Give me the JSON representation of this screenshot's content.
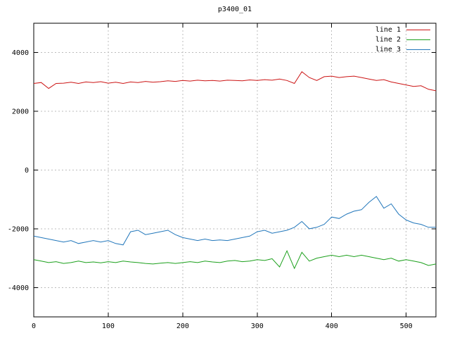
{
  "chart_data": {
    "type": "line",
    "title": "p3400_01",
    "xlabel": "",
    "ylabel": "",
    "xlim": [
      0,
      540
    ],
    "ylim": [
      -5000,
      5000
    ],
    "xticks": [
      0,
      100,
      200,
      300,
      400,
      500
    ],
    "yticks": [
      -4000,
      -2000,
      0,
      2000,
      4000
    ],
    "grid": true,
    "grid_color": "#bcbcbc",
    "legend_position": "top-right",
    "series": [
      {
        "name": "line 1",
        "color": "#cc1414",
        "x_start": 0,
        "x_step": 10,
        "values": [
          2950,
          2980,
          2780,
          2950,
          2960,
          2990,
          2950,
          3000,
          2980,
          3010,
          2960,
          2990,
          2950,
          3000,
          2980,
          3020,
          2990,
          3010,
          3040,
          3020,
          3050,
          3030,
          3060,
          3040,
          3050,
          3030,
          3060,
          3050,
          3040,
          3070,
          3050,
          3080,
          3060,
          3100,
          3050,
          2950,
          3350,
          3150,
          3050,
          3180,
          3200,
          3150,
          3180,
          3200,
          3150,
          3100,
          3050,
          3080,
          3000,
          2950,
          2900,
          2850,
          2870,
          2750,
          2700
        ]
      },
      {
        "name": "line 2",
        "color": "#1ca01c",
        "x_start": 0,
        "x_step": 10,
        "values": [
          -3050,
          -3100,
          -3150,
          -3120,
          -3180,
          -3150,
          -3100,
          -3150,
          -3130,
          -3160,
          -3120,
          -3150,
          -3100,
          -3130,
          -3150,
          -3180,
          -3200,
          -3170,
          -3150,
          -3180,
          -3150,
          -3120,
          -3150,
          -3100,
          -3130,
          -3150,
          -3100,
          -3080,
          -3120,
          -3100,
          -3050,
          -3080,
          -3020,
          -3300,
          -2750,
          -3350,
          -2800,
          -3100,
          -3000,
          -2950,
          -2900,
          -2950,
          -2900,
          -2950,
          -2900,
          -2950,
          -3000,
          -3050,
          -3000,
          -3100,
          -3050,
          -3100,
          -3150,
          -3250,
          -3200
        ]
      },
      {
        "name": "line 3",
        "color": "#2277bb",
        "x_start": 0,
        "x_step": 10,
        "values": [
          -2250,
          -2300,
          -2350,
          -2400,
          -2450,
          -2400,
          -2500,
          -2450,
          -2400,
          -2450,
          -2400,
          -2500,
          -2550,
          -2100,
          -2050,
          -2200,
          -2150,
          -2100,
          -2050,
          -2200,
          -2300,
          -2350,
          -2400,
          -2350,
          -2400,
          -2380,
          -2400,
          -2350,
          -2300,
          -2250,
          -2100,
          -2050,
          -2150,
          -2100,
          -2050,
          -1950,
          -1750,
          -2000,
          -1950,
          -1850,
          -1600,
          -1650,
          -1500,
          -1400,
          -1350,
          -1100,
          -900,
          -1300,
          -1150,
          -1500,
          -1700,
          -1800,
          -1850,
          -1950,
          -1950
        ]
      }
    ]
  }
}
